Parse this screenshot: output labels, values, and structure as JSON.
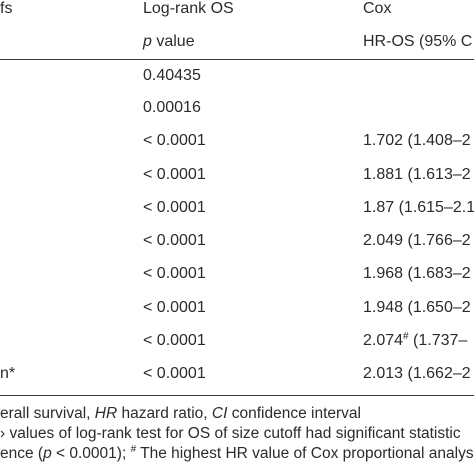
{
  "header": {
    "col0": "fs",
    "col1": "Log-rank OS",
    "col2": "Cox",
    "sub1_italic": "p",
    "sub1_rest": " value",
    "sub2": "HR-OS (95% C"
  },
  "rows": [
    {
      "label": "",
      "p": "0.40435",
      "hr": "",
      "hr_sup": "",
      "hr_rest": ""
    },
    {
      "label": "",
      "p": "0.00016",
      "hr": "",
      "hr_sup": "",
      "hr_rest": ""
    },
    {
      "label": "",
      "p": "< 0.0001",
      "hr": "1.702 (1.408–2",
      "hr_sup": "",
      "hr_rest": ""
    },
    {
      "label": "",
      "p": "< 0.0001",
      "hr": "1.881 (1.613–2",
      "hr_sup": "",
      "hr_rest": ""
    },
    {
      "label": "",
      "p": "< 0.0001",
      "hr": "1.87 (1.615–2.1",
      "hr_sup": "",
      "hr_rest": ""
    },
    {
      "label": "",
      "p": "< 0.0001",
      "hr": "2.049 (1.766–2",
      "hr_sup": "",
      "hr_rest": ""
    },
    {
      "label": "",
      "p": "< 0.0001",
      "hr": "1.968 (1.683–2",
      "hr_sup": "",
      "hr_rest": ""
    },
    {
      "label": "",
      "p": "< 0.0001",
      "hr": "1.948 (1.650–2",
      "hr_sup": "",
      "hr_rest": ""
    },
    {
      "label": "",
      "p": "< 0.0001",
      "hr": "2.074",
      "hr_sup": "#",
      "hr_rest": " (1.737–"
    },
    {
      "label": "n*",
      "p": "< 0.0001",
      "hr": "2.013 (1.662–2",
      "hr_sup": "",
      "hr_rest": ""
    }
  ],
  "footnotes": {
    "line1_a": "erall survival, ",
    "line1_b": "HR",
    "line1_c": " hazard ratio, ",
    "line1_d": "CI",
    "line1_e": " confidence interval",
    "line2": "› values of log-rank test for OS of size cutoff had significant statistic",
    "line3_a": "ence (",
    "line3_b": "p",
    "line3_c": " < 0.0001); ",
    "line3_d": "#",
    "line3_e": " The highest HR value of Cox proportional analys"
  }
}
